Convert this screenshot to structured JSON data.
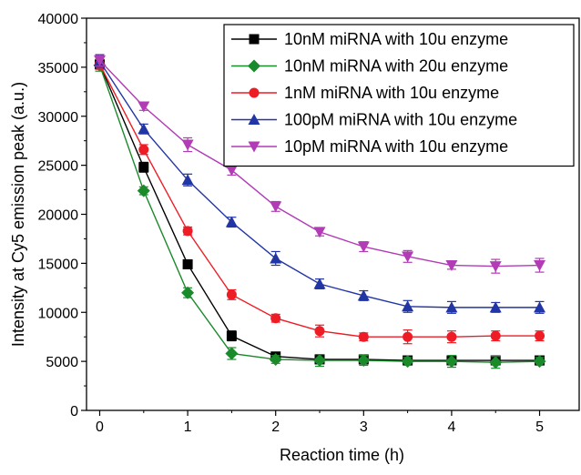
{
  "chart_data": {
    "type": "line",
    "title": "",
    "xlabel": "Reaction time (h)",
    "ylabel": "Intensity at  Cy5 emission peak (a.u.)",
    "xlim": [
      -0.15,
      5.45
    ],
    "ylim": [
      0,
      40000
    ],
    "x_ticks": [
      0,
      1,
      2,
      3,
      4,
      5
    ],
    "x_tick_labels": [
      "0",
      "1",
      "2",
      "3",
      "4",
      "5"
    ],
    "y_ticks": [
      0,
      5000,
      10000,
      15000,
      20000,
      25000,
      30000,
      35000,
      40000
    ],
    "y_tick_labels": [
      "0",
      "5000",
      "10000",
      "15000",
      "20000",
      "25000",
      "30000",
      "35000",
      "40000"
    ],
    "grid": false,
    "legend_position": "top-right",
    "x": [
      0,
      0.5,
      1,
      1.5,
      2,
      2.5,
      3,
      3.5,
      4,
      4.5,
      5
    ],
    "series": [
      {
        "name": "10nM miRNA with 10u enzyme",
        "color": "#000000",
        "marker": "square",
        "values": [
          35300,
          24800,
          14900,
          7600,
          5500,
          5200,
          5200,
          5100,
          5100,
          5100,
          5100
        ],
        "errors": [
          500,
          500,
          400,
          500,
          300,
          300,
          300,
          300,
          300,
          400,
          300
        ]
      },
      {
        "name": "10nM miRNA with 20u enzyme",
        "color": "#1a8a2a",
        "marker": "diamond",
        "values": [
          35200,
          22400,
          12000,
          5800,
          5200,
          5100,
          5100,
          5000,
          5000,
          4900,
          5000
        ],
        "errors": [
          600,
          400,
          500,
          600,
          400,
          600,
          500,
          400,
          600,
          600,
          400
        ]
      },
      {
        "name": "1nM miRNA with 10u enzyme",
        "color": "#ee1c25",
        "marker": "circle",
        "values": [
          35300,
          26600,
          18300,
          11800,
          9400,
          8100,
          7500,
          7500,
          7500,
          7600,
          7600
        ],
        "errors": [
          500,
          500,
          400,
          500,
          400,
          600,
          400,
          700,
          600,
          500,
          500
        ]
      },
      {
        "name": "100pM miRNA with 10u enzyme",
        "color": "#2235a5",
        "marker": "triangle-up",
        "values": [
          35600,
          28700,
          23500,
          19200,
          15500,
          12900,
          11700,
          10600,
          10500,
          10500,
          10500
        ],
        "errors": [
          600,
          500,
          600,
          500,
          700,
          500,
          500,
          600,
          600,
          500,
          600
        ]
      },
      {
        "name": "10pM miRNA with 10u enzyme",
        "color": "#b23bb6",
        "marker": "triangle-down",
        "values": [
          35700,
          31000,
          27100,
          24500,
          20800,
          18200,
          16700,
          15700,
          14800,
          14700,
          14800
        ],
        "errors": [
          600,
          400,
          700,
          500,
          500,
          400,
          500,
          600,
          400,
          700,
          700
        ]
      }
    ]
  }
}
